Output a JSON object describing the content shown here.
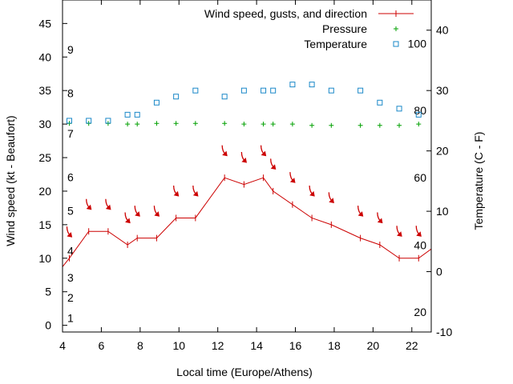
{
  "chart_data": {
    "type": "line",
    "title": "",
    "xlabel": "Local time (Europe/Athens)",
    "ylabel": "Wind speed (kt - Beaufort)",
    "y2label": "Temperature (C - F)",
    "xlim": [
      4,
      23
    ],
    "ylim": [
      -1,
      48.5
    ],
    "y2lim": [
      -10,
      45
    ],
    "grid": false,
    "legend_position": "top-right",
    "x_ticks": [
      4,
      6,
      8,
      10,
      12,
      14,
      16,
      18,
      20,
      22
    ],
    "y_ticks": [
      0,
      5,
      10,
      15,
      20,
      25,
      30,
      35,
      40,
      45
    ],
    "y2_ticks": [
      -10,
      0,
      10,
      20,
      30,
      40
    ],
    "beaufort_labels": [
      {
        "label": "1",
        "y": 1.1
      },
      {
        "label": "2",
        "y": 4.1
      },
      {
        "label": "3",
        "y": 7.1
      },
      {
        "label": "4",
        "y": 11.1
      },
      {
        "label": "5",
        "y": 17.1
      },
      {
        "label": "6",
        "y": 22.1
      },
      {
        "label": "7",
        "y": 28.6
      },
      {
        "label": "8",
        "y": 34.6
      },
      {
        "label": "9",
        "y": 41.1
      }
    ],
    "fahrenheit_labels": [
      {
        "label": "20",
        "y": -6.7
      },
      {
        "label": "40",
        "y": 4.4
      },
      {
        "label": "60",
        "y": 15.6
      },
      {
        "label": "80",
        "y": 26.7
      },
      {
        "label": "100",
        "y": 37.8
      }
    ],
    "series": [
      {
        "name": "Wind speed, gusts, and direction",
        "color": "#cc0000",
        "marker": "plus",
        "x": [
          3.8,
          4.35,
          5.35,
          6.35,
          7.35,
          7.85,
          8.85,
          9.85,
          10.85,
          12.35,
          13.35,
          14.35,
          14.85,
          15.85,
          16.85,
          17.85,
          19.35,
          20.35,
          21.35,
          22.35,
          23.3
        ],
        "y": [
          8,
          10,
          14,
          14,
          12,
          13,
          13,
          16,
          16,
          22,
          21,
          22,
          20,
          18,
          16,
          15,
          13,
          12,
          10,
          10,
          12
        ],
        "direction_arrows": [
          {
            "x": 4.35,
            "y": 13.9
          },
          {
            "x": 5.35,
            "y": 18.0
          },
          {
            "x": 6.35,
            "y": 18.0
          },
          {
            "x": 7.35,
            "y": 16.0
          },
          {
            "x": 7.85,
            "y": 17.0
          },
          {
            "x": 8.85,
            "y": 17.0
          },
          {
            "x": 9.85,
            "y": 20.0
          },
          {
            "x": 10.85,
            "y": 20.0
          },
          {
            "x": 12.35,
            "y": 26.0
          },
          {
            "x": 13.35,
            "y": 25.0
          },
          {
            "x": 14.35,
            "y": 26.0
          },
          {
            "x": 14.85,
            "y": 24.0
          },
          {
            "x": 15.85,
            "y": 22.0
          },
          {
            "x": 16.85,
            "y": 20.0
          },
          {
            "x": 17.85,
            "y": 19.0
          },
          {
            "x": 19.35,
            "y": 17.0
          },
          {
            "x": 20.35,
            "y": 16.0
          },
          {
            "x": 21.35,
            "y": 14.0
          },
          {
            "x": 22.35,
            "y": 14.0
          }
        ]
      },
      {
        "name": "Pressure",
        "color": "#00a000",
        "marker": "plus",
        "x": [
          4.35,
          5.35,
          6.35,
          7.35,
          7.85,
          8.85,
          9.85,
          10.85,
          12.35,
          13.35,
          14.35,
          14.85,
          15.85,
          16.85,
          17.85,
          19.35,
          20.35,
          21.35,
          22.35
        ],
        "y": [
          30.1,
          30.1,
          30.1,
          30.0,
          30.0,
          30.1,
          30.1,
          30.1,
          30.1,
          30.0,
          30.0,
          30.0,
          30.0,
          29.8,
          29.8,
          29.8,
          29.8,
          29.8,
          30.0
        ]
      },
      {
        "name": "Temperature",
        "color": "#1a88c8",
        "marker": "square",
        "axis": "y2",
        "x": [
          4.35,
          5.35,
          6.35,
          7.35,
          7.85,
          8.85,
          9.85,
          10.85,
          12.35,
          13.35,
          14.35,
          14.85,
          15.85,
          16.85,
          17.85,
          19.35,
          20.35,
          21.35,
          22.35
        ],
        "y": [
          25.0,
          25.0,
          25.0,
          26.0,
          26.0,
          28.0,
          29.0,
          30.0,
          29.0,
          30.0,
          30.0,
          30.0,
          31.0,
          31.0,
          30.0,
          30.0,
          28.0,
          27.0,
          26.0
        ]
      }
    ]
  }
}
